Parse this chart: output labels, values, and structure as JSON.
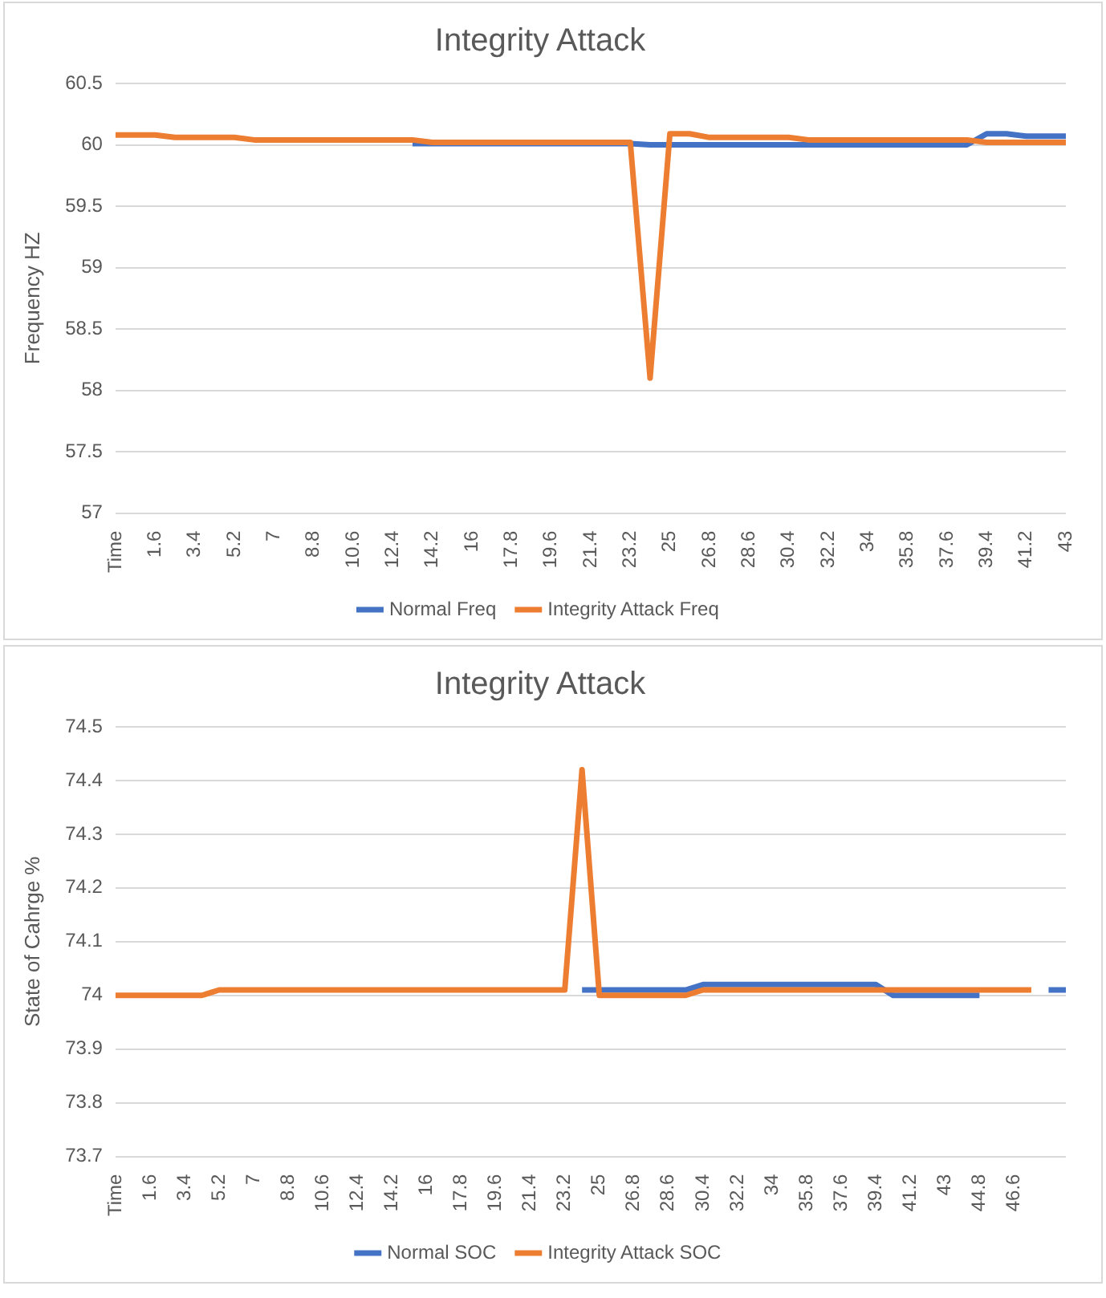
{
  "chart_data": [
    {
      "type": "line",
      "title": "Integrity Attack",
      "ylabel": "Frequency HZ",
      "legend": "bottom",
      "grid": "y",
      "categories": [
        "Time",
        null,
        "1.6",
        null,
        "3.4",
        null,
        "5.2",
        null,
        "7",
        null,
        "8.8",
        null,
        "10.6",
        null,
        "12.4",
        null,
        "14.2",
        null,
        "16",
        null,
        "17.8",
        null,
        "19.6",
        null,
        "21.4",
        null,
        "23.2",
        null,
        "25",
        null,
        "26.8",
        null,
        "28.6",
        null,
        "30.4",
        null,
        "32.2",
        null,
        "34",
        null,
        "35.8",
        null,
        "37.6",
        null,
        "39.4",
        null,
        "41.2",
        null,
        "43"
      ],
      "ylim": [
        57,
        60.5
      ],
      "yticks": [
        57,
        57.5,
        58,
        58.5,
        59,
        59.5,
        60,
        60.5
      ],
      "series": [
        {
          "name": "Normal Freq",
          "color": "#4472c4",
          "values": [
            null,
            null,
            null,
            null,
            null,
            null,
            null,
            null,
            null,
            null,
            null,
            null,
            null,
            null,
            null,
            60.01,
            60.01,
            60.01,
            60.01,
            60.01,
            60.01,
            60.01,
            60.01,
            60.01,
            60.01,
            60.01,
            60.01,
            60.0,
            60.0,
            60.0,
            60.0,
            60.0,
            60.0,
            60.0,
            60.0,
            60.0,
            60.0,
            60.0,
            60.0,
            60.0,
            60.0,
            60.0,
            60.0,
            60.0,
            60.09,
            60.09,
            60.07,
            60.07,
            60.07
          ]
        },
        {
          "name": "Integrity Attack Freq",
          "color": "#ed7d31",
          "values": [
            60.08,
            60.08,
            60.08,
            60.06,
            60.06,
            60.06,
            60.06,
            60.04,
            60.04,
            60.04,
            60.04,
            60.04,
            60.04,
            60.04,
            60.04,
            60.04,
            60.02,
            60.02,
            60.02,
            60.02,
            60.02,
            60.02,
            60.02,
            60.02,
            60.02,
            60.02,
            60.02,
            58.1,
            60.09,
            60.09,
            60.06,
            60.06,
            60.06,
            60.06,
            60.06,
            60.04,
            60.04,
            60.04,
            60.04,
            60.04,
            60.04,
            60.04,
            60.04,
            60.04,
            60.02,
            60.02,
            60.02,
            60.02,
            60.02
          ]
        }
      ]
    },
    {
      "type": "line",
      "title": "Integrity Attack",
      "ylabel": "State of Cahrge %",
      "legend": "bottom",
      "grid": "y",
      "categories": [
        "Time",
        null,
        "1.6",
        null,
        "3.4",
        null,
        "5.2",
        null,
        "7",
        null,
        "8.8",
        null,
        "10.6",
        null,
        "12.4",
        null,
        "14.2",
        null,
        "16",
        null,
        "17.8",
        null,
        "19.6",
        null,
        "21.4",
        null,
        "23.2",
        null,
        "25",
        null,
        "26.8",
        null,
        "28.6",
        null,
        "30.4",
        null,
        "32.2",
        null,
        "34",
        null,
        "35.8",
        null,
        "37.6",
        null,
        "39.4",
        null,
        "41.2",
        null,
        "43",
        null,
        "44.8",
        null,
        "46.6",
        null,
        null,
        null
      ],
      "ylim": [
        73.7,
        74.5
      ],
      "yticks": [
        73.7,
        73.8,
        73.9,
        74,
        74.1,
        74.2,
        74.3,
        74.4,
        74.5
      ],
      "series": [
        {
          "name": "Normal SOC",
          "color": "#4472c4",
          "values": [
            null,
            null,
            null,
            null,
            null,
            null,
            null,
            null,
            null,
            null,
            null,
            null,
            null,
            null,
            null,
            null,
            null,
            null,
            null,
            null,
            null,
            null,
            null,
            null,
            null,
            null,
            null,
            74.01,
            74.01,
            74.01,
            74.01,
            74.01,
            74.01,
            74.01,
            74.02,
            74.02,
            74.02,
            74.02,
            74.02,
            74.02,
            74.02,
            74.02,
            74.02,
            74.02,
            74.02,
            74.0,
            74.0,
            74.0,
            74.0,
            74.0,
            74.0,
            null,
            null,
            null,
            74.01,
            74.01
          ]
        },
        {
          "name": "Integrity Attack SOC",
          "color": "#ed7d31",
          "values": [
            74.0,
            74.0,
            74.0,
            74.0,
            74.0,
            74.0,
            74.01,
            74.01,
            74.01,
            74.01,
            74.01,
            74.01,
            74.01,
            74.01,
            74.01,
            74.01,
            74.01,
            74.01,
            74.01,
            74.01,
            74.01,
            74.01,
            74.01,
            74.01,
            74.01,
            74.01,
            74.01,
            74.42,
            74.0,
            74.0,
            74.0,
            74.0,
            74.0,
            74.0,
            74.01,
            74.01,
            74.01,
            74.01,
            74.01,
            74.01,
            74.01,
            74.01,
            74.01,
            74.01,
            74.01,
            74.01,
            74.01,
            74.01,
            74.01,
            74.01,
            74.01,
            74.01,
            74.01,
            74.01,
            null,
            null
          ]
        }
      ]
    }
  ]
}
